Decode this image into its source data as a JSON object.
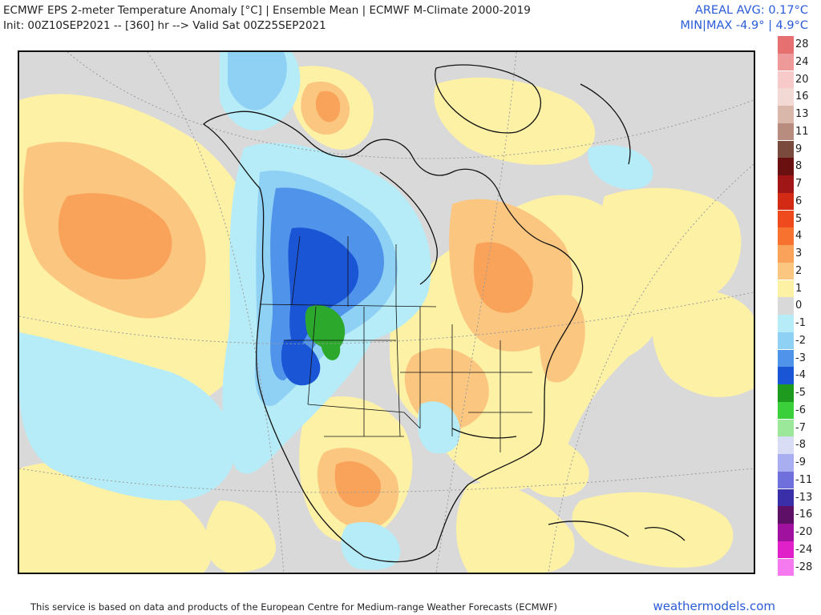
{
  "header": {
    "title_line1": "ECMWF EPS 2-meter Temperature Anomaly [°C] | Ensemble Mean | ECMWF M-Climate 2000-2019",
    "title_line2": "Init: 00Z10SEP2021 -- [360] hr --> Valid Sat 00Z25SEP2021",
    "areal_avg": "AREAL AVG: 0.17°C",
    "min_max": "MIN|MAX -4.9° | 4.9°C"
  },
  "legend": {
    "entries": [
      {
        "label": "28",
        "color": "#e66f6f"
      },
      {
        "label": "24",
        "color": "#ef9a9a"
      },
      {
        "label": "20",
        "color": "#f7c9c9"
      },
      {
        "label": "16",
        "color": "#f3d9d3"
      },
      {
        "label": "13",
        "color": "#d9b7ab"
      },
      {
        "label": "11",
        "color": "#b88c7e"
      },
      {
        "label": "9",
        "color": "#7a4a3e"
      },
      {
        "label": "8",
        "color": "#6b1010"
      },
      {
        "label": "7",
        "color": "#a01616"
      },
      {
        "label": "6",
        "color": "#d22a14"
      },
      {
        "label": "5",
        "color": "#ef4a1e"
      },
      {
        "label": "4",
        "color": "#f7722f"
      },
      {
        "label": "3",
        "color": "#f9a35a"
      },
      {
        "label": "2",
        "color": "#fbc67f"
      },
      {
        "label": "1",
        "color": "#fdf1a6"
      },
      {
        "label": "0",
        "color": "#d9d9d9"
      },
      {
        "label": "-1",
        "color": "#b6ecf7"
      },
      {
        "label": "-2",
        "color": "#8fd0f5"
      },
      {
        "label": "-3",
        "color": "#4f93ea"
      },
      {
        "label": "-4",
        "color": "#1a55d6"
      },
      {
        "label": "-5",
        "color": "#1e9a1e"
      },
      {
        "label": "-6",
        "color": "#3ccf3c"
      },
      {
        "label": "-7",
        "color": "#9be89b"
      },
      {
        "label": "-8",
        "color": "#d8dcf5"
      },
      {
        "label": "-9",
        "color": "#a9aef0"
      },
      {
        "label": "-11",
        "color": "#7070dc"
      },
      {
        "label": "-13",
        "color": "#3a2fa8"
      },
      {
        "label": "-16",
        "color": "#5e0f66"
      },
      {
        "label": "-20",
        "color": "#a0129e"
      },
      {
        "label": "-24",
        "color": "#e020c8"
      },
      {
        "label": "-28",
        "color": "#f57af0"
      }
    ]
  },
  "footer": {
    "disclaimer": "This service is based on data and products of the European Centre for Medium-range Weather Forecasts (ECMWF)",
    "brand": "weathermodels.com"
  }
}
